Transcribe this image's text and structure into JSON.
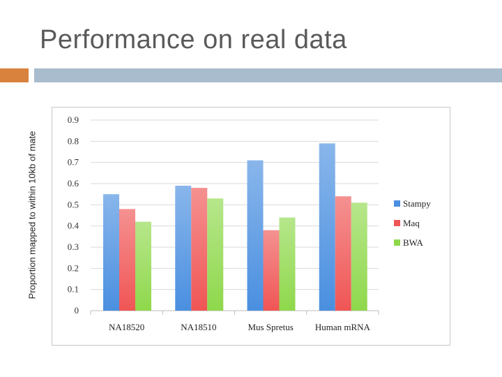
{
  "slide": {
    "title": "Performance on real data"
  },
  "colors": {
    "accent_orange": "#d9823e",
    "accent_blue": "#a9bccd"
  },
  "chart_data": {
    "type": "bar",
    "title": "",
    "xlabel": "",
    "ylabel": "Proportion mapped to within 10kb of mate",
    "categories": [
      "NA18520",
      "NA18510",
      "Mus Spretus",
      "Human mRNA"
    ],
    "series": [
      {
        "name": "Stampy",
        "values": [
          0.55,
          0.59,
          0.71,
          0.79
        ],
        "color": "#4a8fe0"
      },
      {
        "name": "Maq",
        "values": [
          0.48,
          0.58,
          0.38,
          0.54
        ],
        "color": "#f05555"
      },
      {
        "name": "BWA",
        "values": [
          0.42,
          0.53,
          0.44,
          0.51
        ],
        "color": "#8fd84c"
      }
    ],
    "yticks": [
      "0",
      "0.1",
      "0.2",
      "0.3",
      "0.4",
      "0.5",
      "0.6",
      "0.7",
      "0.8",
      "0.9"
    ],
    "ylim": [
      0,
      0.9
    ],
    "grid": true,
    "legend": "right"
  }
}
